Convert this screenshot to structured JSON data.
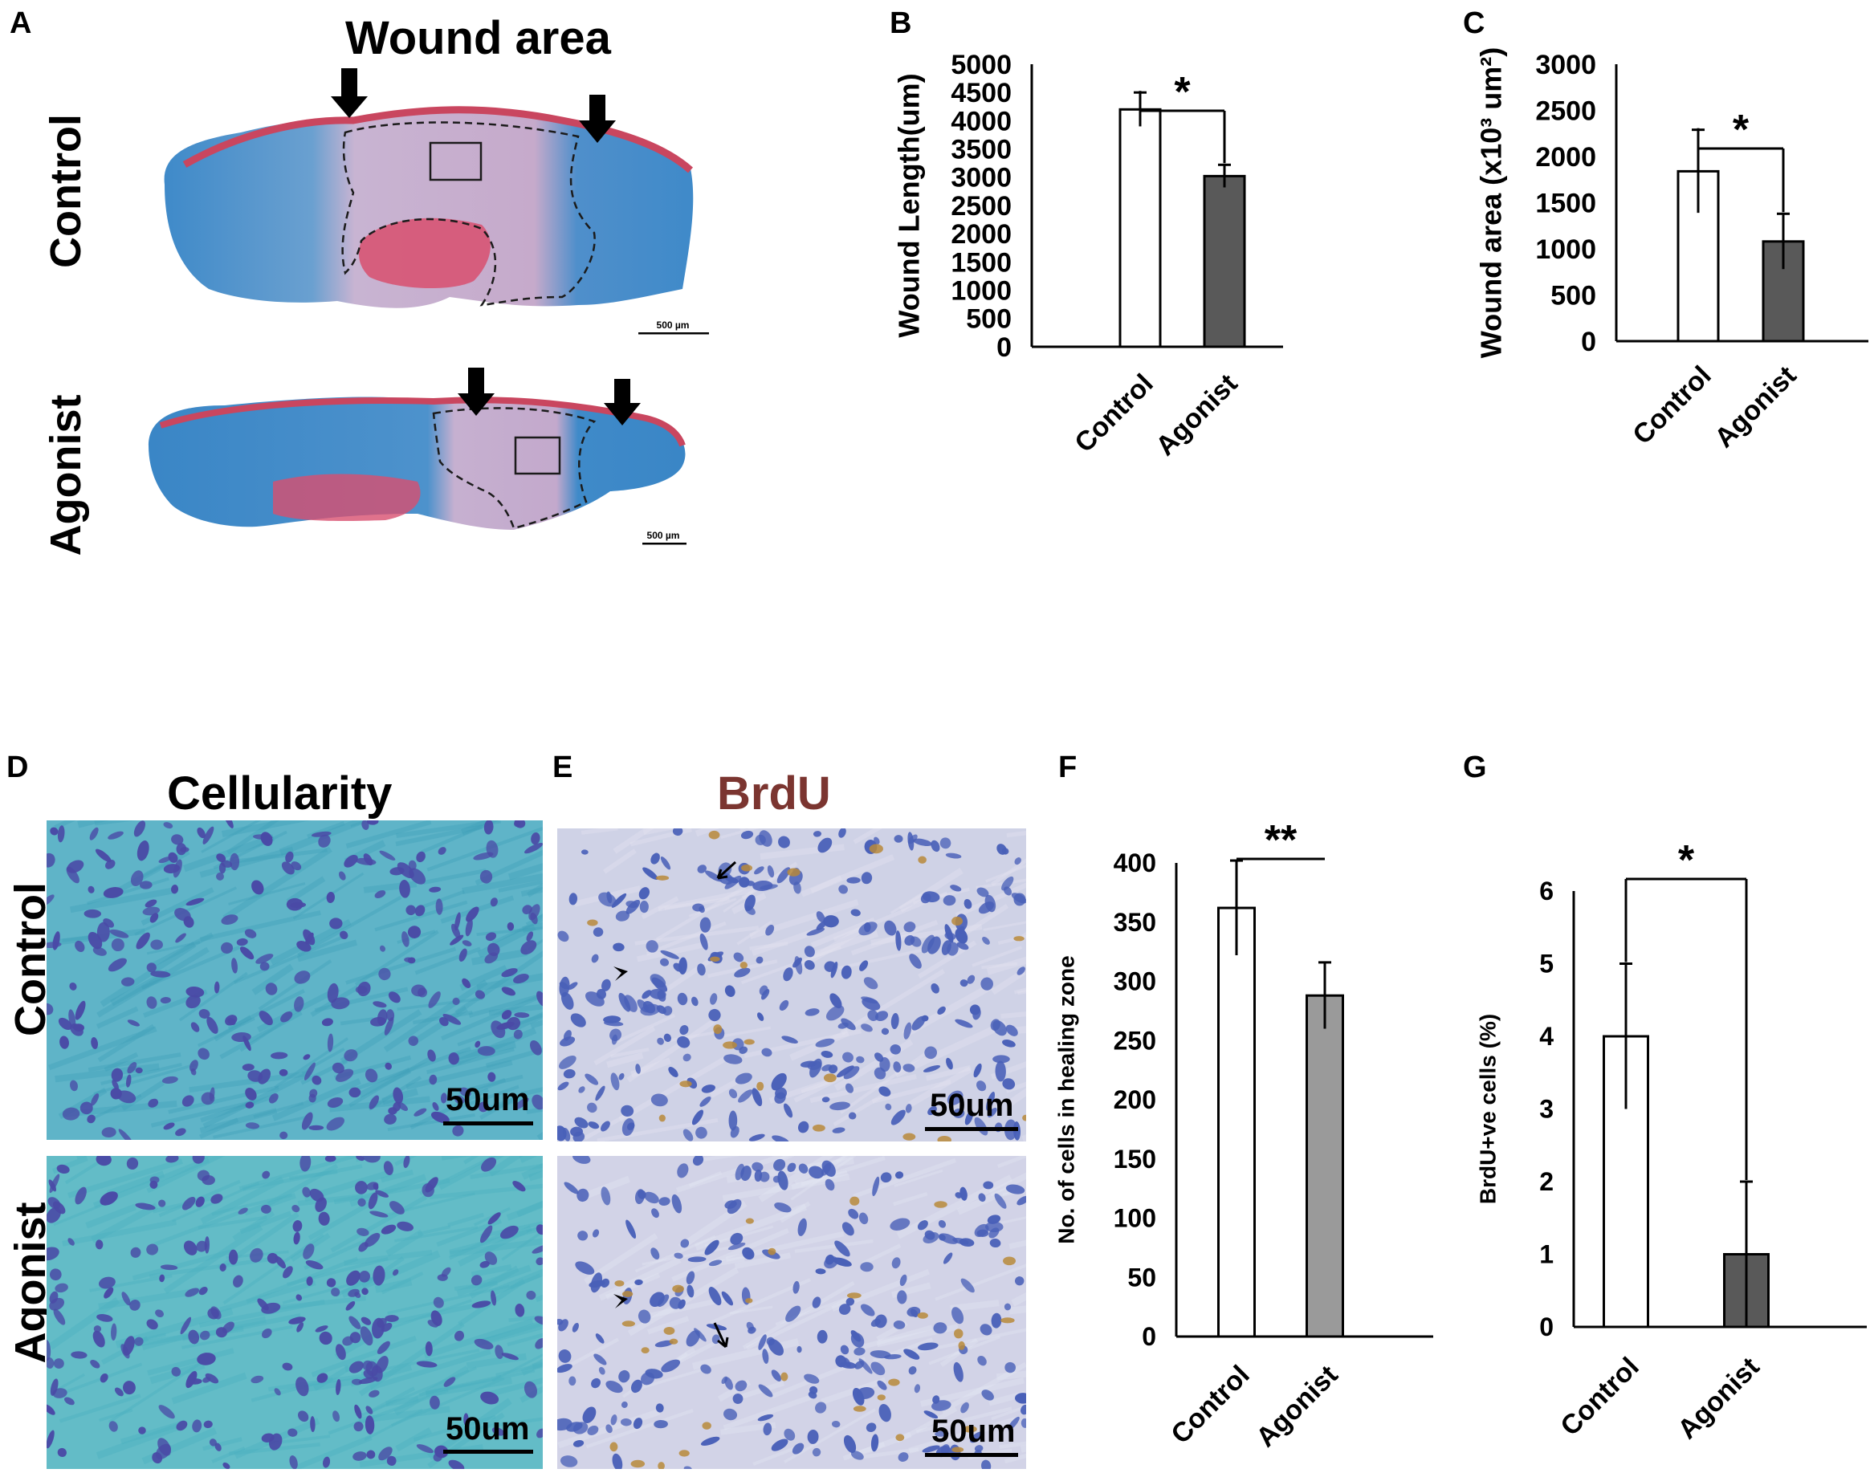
{
  "panels": {
    "A": {
      "letter": "A",
      "title": "Wound area",
      "rows": [
        "Control",
        "Agonist"
      ],
      "scalebars": [
        "500 µm",
        "500 µm"
      ]
    },
    "D": {
      "letter": "D",
      "title": "Cellularity",
      "rows": [
        "Control",
        "Agonist"
      ],
      "scalebars": [
        "50um",
        "50um"
      ]
    },
    "E": {
      "letter": "E",
      "title": "BrdU",
      "scalebars": [
        "50um",
        "50um"
      ]
    }
  },
  "colors": {
    "brdu_title": "#7b3530",
    "dark_bar": "#595959",
    "grey_bar": "#9a9a9a",
    "white_bar": "#ffffff",
    "masson_blue": "#3f8ac9",
    "masson_red": "#c9465f",
    "masson_purple": "#c8b4d2",
    "cell_bg_teal": "#5fb4c8",
    "nucleus": "#4a4aa6",
    "brdu_bg": "#cfd2e6",
    "brdu_positive": "#b98a3a"
  },
  "chart_data": [
    {
      "panel": "B",
      "type": "bar",
      "categories": [
        "Control",
        "Agonist"
      ],
      "values": [
        4200,
        3020
      ],
      "errors": [
        300,
        200
      ],
      "bar_colors": [
        "#ffffff",
        "#595959"
      ],
      "ylabel": "Wound Length(um)",
      "ylim": [
        0,
        5000
      ],
      "yticks": [
        "0",
        "500",
        "1000",
        "1500",
        "2000",
        "2500",
        "3000",
        "3500",
        "4000",
        "4500",
        "5000"
      ],
      "significance": "*"
    },
    {
      "panel": "C",
      "type": "bar",
      "categories": [
        "Control",
        "Agonist"
      ],
      "values": [
        1840,
        1080
      ],
      "errors": [
        450,
        300
      ],
      "bar_colors": [
        "#ffffff",
        "#595959"
      ],
      "ylabel": "Wound area (x10³ um²)",
      "ylim": [
        0,
        3000
      ],
      "yticks": [
        "0",
        "500",
        "1000",
        "1500",
        "2000",
        "2500",
        "3000"
      ],
      "significance": "*"
    },
    {
      "panel": "F",
      "type": "bar",
      "categories": [
        "Control",
        "Agonist"
      ],
      "values": [
        362,
        288
      ],
      "errors": [
        40,
        28
      ],
      "bar_colors": [
        "#ffffff",
        "#9a9a9a"
      ],
      "ylabel": "No. of cells in healing zone",
      "ylim": [
        0,
        400
      ],
      "yticks": [
        "0",
        "50",
        "100",
        "150",
        "200",
        "250",
        "300",
        "350",
        "400"
      ],
      "significance": "**"
    },
    {
      "panel": "G",
      "type": "bar",
      "categories": [
        "Control",
        "Agonist"
      ],
      "values": [
        4,
        1
      ],
      "errors": [
        1,
        1
      ],
      "bar_colors": [
        "#ffffff",
        "#595959"
      ],
      "ylabel": "BrdU+ve cells (%)",
      "ylim": [
        0,
        6
      ],
      "yticks": [
        "0",
        "1",
        "2",
        "3",
        "4",
        "5",
        "6"
      ],
      "significance": "*"
    }
  ]
}
